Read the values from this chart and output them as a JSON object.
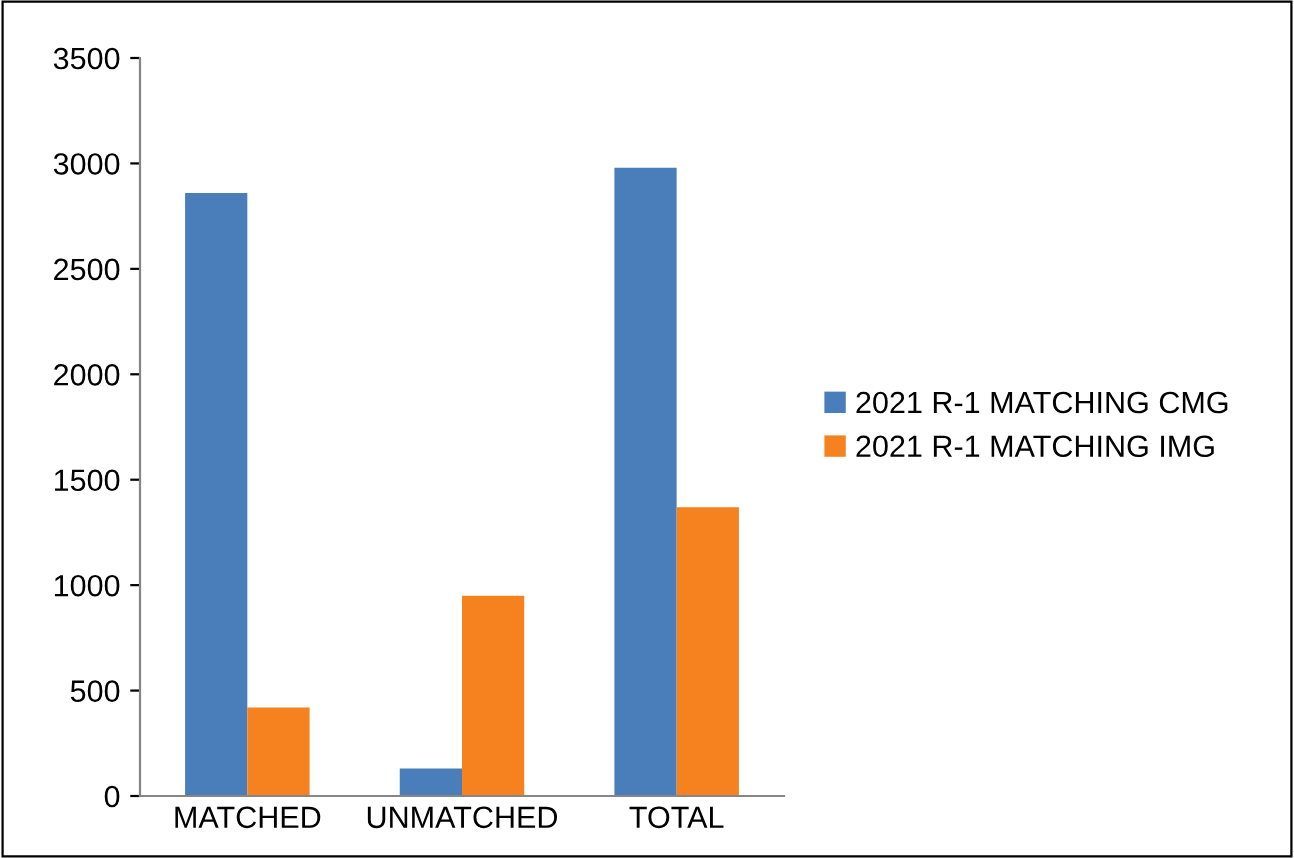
{
  "chart_data": {
    "type": "bar",
    "categories": [
      "MATCHED",
      "UNMATCHED",
      "TOTAL"
    ],
    "series": [
      {
        "name": "2021 R-1 MATCHING CMG",
        "color": "#4a7ebb",
        "values": [
          2860,
          130,
          2980
        ]
      },
      {
        "name": "2021 R-1 MATCHING IMG",
        "color": "#f5821f",
        "values": [
          420,
          950,
          1370
        ]
      }
    ],
    "ylim": [
      0,
      3500
    ],
    "yticks": [
      0,
      500,
      1000,
      1500,
      2000,
      2500,
      3000,
      3500
    ],
    "grid": false,
    "legend": "right"
  }
}
